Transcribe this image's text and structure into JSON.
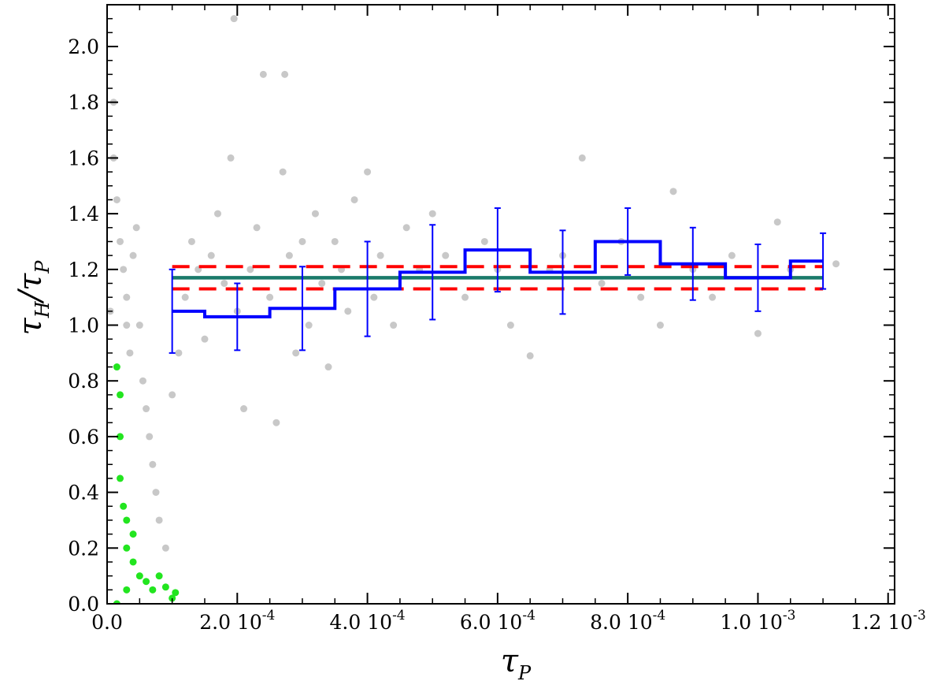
{
  "chart_data": {
    "type": "scatter",
    "title": "",
    "xlabel": {
      "base": "τ",
      "sub": "P"
    },
    "ylabel": {
      "numerator_base": "τ",
      "numerator_sub": "H",
      "slash": "/",
      "denominator_base": "τ",
      "denominator_sub": "P"
    },
    "xlim": [
      0,
      0.00121
    ],
    "ylim": [
      0,
      2.15
    ],
    "grid": false,
    "x_ticks": [
      {
        "value": 0.0,
        "mantissa": "0.0",
        "exp": ""
      },
      {
        "value": 0.0002,
        "mantissa": "2.0 10",
        "exp": "-4"
      },
      {
        "value": 0.0004,
        "mantissa": "4.0 10",
        "exp": "-4"
      },
      {
        "value": 0.0006,
        "mantissa": "6.0 10",
        "exp": "-4"
      },
      {
        "value": 0.0008,
        "mantissa": "8.0 10",
        "exp": "-4"
      },
      {
        "value": 0.001,
        "mantissa": "1.0 10",
        "exp": "-3"
      },
      {
        "value": 0.0012,
        "mantissa": "1.2 10",
        "exp": "-3"
      }
    ],
    "y_ticks": [
      {
        "value": 0.0,
        "label": "0.0"
      },
      {
        "value": 0.2,
        "label": "0.2"
      },
      {
        "value": 0.4,
        "label": "0.4"
      },
      {
        "value": 0.6,
        "label": "0.6"
      },
      {
        "value": 0.8,
        "label": "0.8"
      },
      {
        "value": 1.0,
        "label": "1.0"
      },
      {
        "value": 1.2,
        "label": "1.2"
      },
      {
        "value": 1.4,
        "label": "1.4"
      },
      {
        "value": 1.6,
        "label": "1.6"
      },
      {
        "value": 1.8,
        "label": "1.8"
      },
      {
        "value": 2.0,
        "label": "2.0"
      }
    ],
    "series": [
      {
        "type": "scatter",
        "color": "#c8c8c8",
        "points": [
          [
            5e-06,
            1.05
          ],
          [
            1e-05,
            1.6
          ],
          [
            1e-05,
            1.8
          ],
          [
            1.5e-05,
            1.45
          ],
          [
            2e-05,
            1.3
          ],
          [
            2.5e-05,
            1.2
          ],
          [
            3e-05,
            1.1
          ],
          [
            3e-05,
            1.0
          ],
          [
            3.5e-05,
            0.9
          ],
          [
            4e-05,
            1.25
          ],
          [
            4.5e-05,
            1.35
          ],
          [
            5e-05,
            1.0
          ],
          [
            5.5e-05,
            0.8
          ],
          [
            6e-05,
            0.7
          ],
          [
            6.5e-05,
            0.6
          ],
          [
            7e-05,
            0.5
          ],
          [
            7.5e-05,
            0.4
          ],
          [
            8e-05,
            0.3
          ],
          [
            9e-05,
            0.2
          ],
          [
            0.0001,
            0.75
          ],
          [
            0.00011,
            0.9
          ],
          [
            0.00012,
            1.1
          ],
          [
            0.00013,
            1.3
          ],
          [
            0.00014,
            1.2
          ],
          [
            0.00015,
            0.95
          ],
          [
            0.00016,
            1.25
          ],
          [
            0.00017,
            1.4
          ],
          [
            0.00018,
            1.15
          ],
          [
            0.00019,
            1.6
          ],
          [
            0.0002,
            1.05
          ],
          [
            0.00021,
            0.7
          ],
          [
            0.00022,
            1.2
          ],
          [
            0.00023,
            1.35
          ],
          [
            0.00024,
            1.9
          ],
          [
            0.00025,
            1.1
          ],
          [
            0.00026,
            0.65
          ],
          [
            0.00027,
            1.55
          ],
          [
            0.00028,
            1.25
          ],
          [
            0.00029,
            0.9
          ],
          [
            0.0003,
            1.3
          ],
          [
            0.00031,
            1.0
          ],
          [
            0.00032,
            1.4
          ],
          [
            0.00033,
            1.15
          ],
          [
            0.00034,
            0.85
          ],
          [
            0.00035,
            1.3
          ],
          [
            0.00036,
            1.2
          ],
          [
            0.00037,
            1.05
          ],
          [
            0.00038,
            1.45
          ],
          [
            0.0004,
            1.55
          ],
          [
            0.00041,
            1.1
          ],
          [
            0.00042,
            1.25
          ],
          [
            0.00044,
            1.0
          ],
          [
            0.00046,
            1.35
          ],
          [
            0.00048,
            1.2
          ],
          [
            0.0005,
            1.4
          ],
          [
            0.00052,
            1.25
          ],
          [
            0.00055,
            1.1
          ],
          [
            0.00058,
            1.3
          ],
          [
            0.0006,
            1.2
          ],
          [
            0.00062,
            1.0
          ],
          [
            0.00065,
            0.89
          ],
          [
            0.00068,
            1.2
          ],
          [
            0.0007,
            1.25
          ],
          [
            0.00073,
            1.6
          ],
          [
            0.00076,
            1.15
          ],
          [
            0.00079,
            1.3
          ],
          [
            0.00082,
            1.1
          ],
          [
            0.00085,
            1.0
          ],
          [
            0.00087,
            1.48
          ],
          [
            0.0009,
            1.2
          ],
          [
            0.00093,
            1.1
          ],
          [
            0.00096,
            1.25
          ],
          [
            0.001,
            0.97
          ],
          [
            0.00103,
            1.37
          ],
          [
            0.00105,
            1.2
          ],
          [
            0.00112,
            1.22
          ],
          [
            0.000195,
            2.1
          ],
          [
            0.000273,
            1.9
          ]
        ]
      },
      {
        "type": "scatter",
        "color": "#22e51f",
        "points": [
          [
            1.5e-05,
            0.85
          ],
          [
            2e-05,
            0.75
          ],
          [
            2e-05,
            0.6
          ],
          [
            2e-05,
            0.45
          ],
          [
            2.5e-05,
            0.35
          ],
          [
            3e-05,
            0.3
          ],
          [
            3e-05,
            0.2
          ],
          [
            4e-05,
            0.15
          ],
          [
            5e-05,
            0.1
          ],
          [
            6e-05,
            0.08
          ],
          [
            7e-05,
            0.05
          ],
          [
            8e-05,
            0.1
          ],
          [
            9e-05,
            0.06
          ],
          [
            0.0001,
            0.02
          ],
          [
            0.000105,
            0.04
          ],
          [
            1.5e-05,
            0.0
          ],
          [
            3e-05,
            0.05
          ],
          [
            4e-05,
            0.25
          ]
        ]
      },
      {
        "type": "step",
        "color": "#0000ff",
        "edges": [
          0.0001,
          0.00015,
          0.0002,
          0.00025,
          0.0003,
          0.00035,
          0.0004,
          0.00045,
          0.0005,
          0.00055,
          0.0006,
          0.00065,
          0.0007,
          0.00075,
          0.0008,
          0.00085,
          0.0009,
          0.00095,
          0.001,
          0.00105,
          0.0011
        ],
        "values": [
          1.05,
          1.03,
          1.03,
          1.06,
          1.06,
          1.13,
          1.13,
          1.19,
          1.19,
          1.27,
          1.27,
          1.19,
          1.19,
          1.3,
          1.3,
          1.22,
          1.22,
          1.17,
          1.17,
          1.23
        ]
      },
      {
        "type": "errorbar",
        "color": "#0000ff",
        "points": [
          {
            "x": 0.0001,
            "y": 1.05,
            "low": 0.9,
            "high": 1.2
          },
          {
            "x": 0.0002,
            "y": 1.03,
            "low": 0.91,
            "high": 1.15
          },
          {
            "x": 0.0003,
            "y": 1.06,
            "low": 0.91,
            "high": 1.21
          },
          {
            "x": 0.0004,
            "y": 1.13,
            "low": 0.96,
            "high": 1.3
          },
          {
            "x": 0.0005,
            "y": 1.19,
            "low": 1.02,
            "high": 1.36
          },
          {
            "x": 0.0006,
            "y": 1.27,
            "low": 1.12,
            "high": 1.42
          },
          {
            "x": 0.0007,
            "y": 1.19,
            "low": 1.04,
            "high": 1.34
          },
          {
            "x": 0.0008,
            "y": 1.3,
            "low": 1.18,
            "high": 1.42
          },
          {
            "x": 0.0009,
            "y": 1.22,
            "low": 1.09,
            "high": 1.35
          },
          {
            "x": 0.001,
            "y": 1.17,
            "low": 1.05,
            "high": 1.29
          },
          {
            "x": 0.0011,
            "y": 1.23,
            "low": 1.13,
            "high": 1.33
          }
        ]
      },
      {
        "type": "hline",
        "color": "#1a7a6a",
        "y": 1.17,
        "x_range": [
          0.0001,
          0.0011
        ]
      },
      {
        "type": "hline",
        "color": "#ff0000",
        "style": "dashed",
        "y": 1.21,
        "x_range": [
          0.0001,
          0.0011
        ]
      },
      {
        "type": "hline",
        "color": "#ff0000",
        "style": "dashed",
        "y": 1.13,
        "x_range": [
          0.0001,
          0.0011
        ]
      }
    ]
  }
}
